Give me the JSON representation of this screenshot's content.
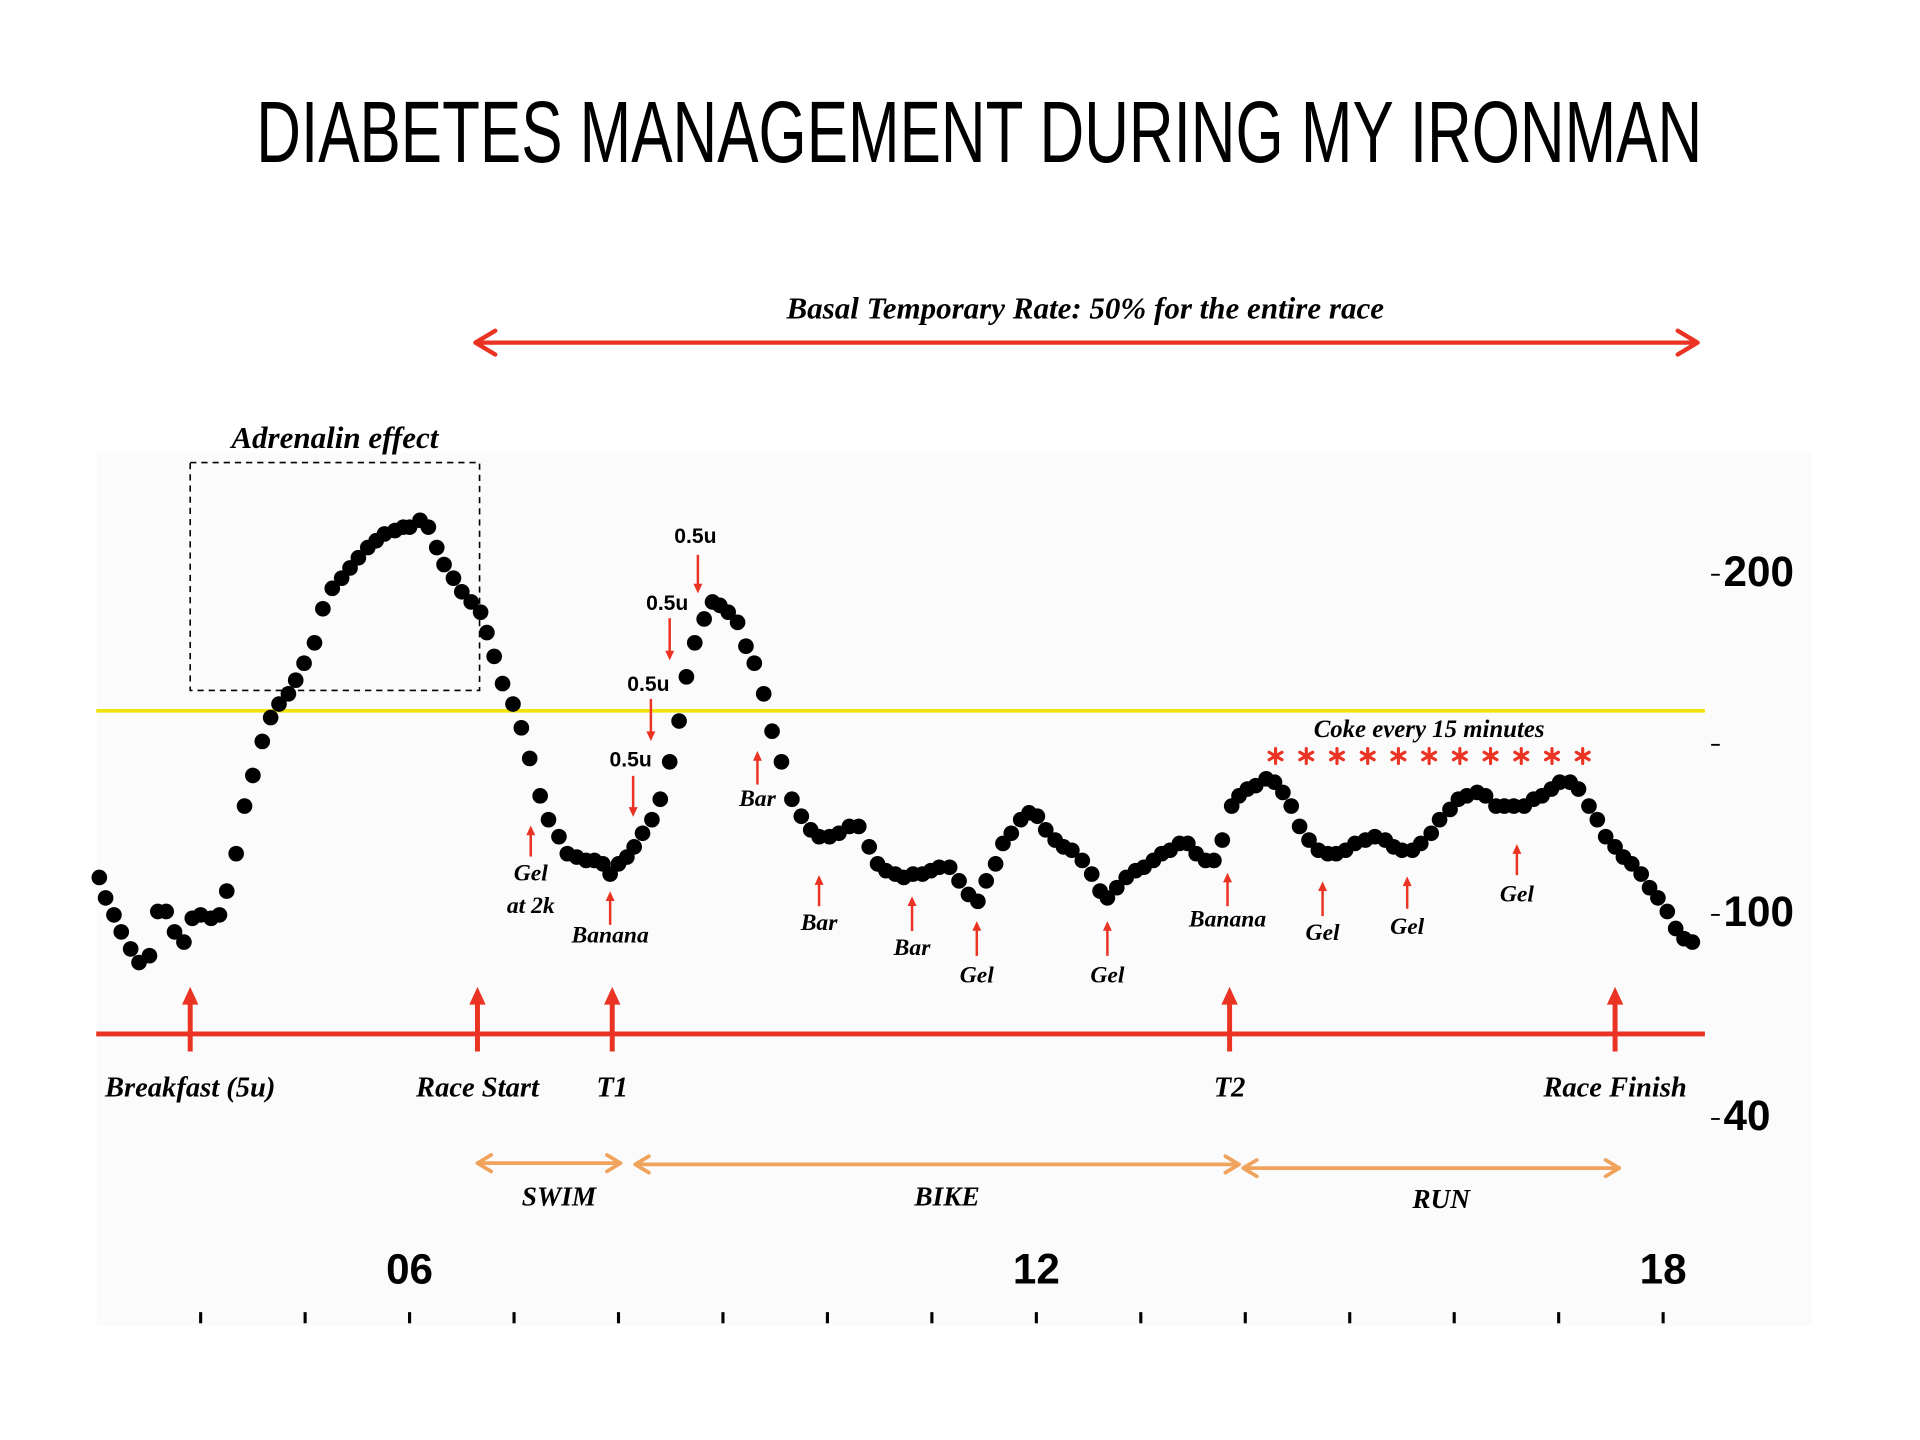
{
  "chart_data": {
    "type": "scatter",
    "title": "DIABETES MANAGEMENT DURING MY IRONMAN",
    "color": "#000000",
    "x": [
      3.03,
      3.09,
      3.17,
      3.24,
      3.33,
      3.41,
      3.51,
      3.59,
      3.67,
      3.75,
      3.84,
      3.92,
      4.0,
      4.1,
      4.18,
      4.25,
      4.34,
      4.42,
      4.5,
      4.59,
      4.67,
      4.75,
      4.84,
      4.91,
      4.99,
      5.09,
      5.17,
      5.26,
      5.35,
      5.43,
      5.51,
      5.6,
      5.68,
      5.76,
      5.86,
      5.94,
      6.0,
      6.1,
      6.18,
      6.26,
      6.33,
      6.42,
      6.5,
      6.59,
      6.68,
      6.74,
      6.81,
      6.89,
      6.99,
      7.07,
      7.15,
      7.25,
      7.33,
      7.43,
      7.51,
      7.6,
      7.69,
      7.77,
      7.85,
      7.92,
      8.0,
      8.08,
      8.15,
      8.23,
      8.32,
      8.4,
      8.49,
      8.58,
      8.65,
      8.73,
      8.82,
      8.9,
      8.97,
      9.05,
      9.14,
      9.22,
      9.3,
      9.39,
      9.47,
      9.56,
      9.66,
      9.75,
      9.84,
      9.92,
      10.02,
      10.11,
      10.21,
      10.3,
      10.4,
      10.48,
      10.56,
      10.65,
      10.73,
      10.82,
      10.91,
      10.99,
      11.07,
      11.17,
      11.26,
      11.35,
      11.44,
      11.52,
      11.61,
      11.68,
      11.76,
      11.85,
      11.93,
      12.01,
      12.09,
      12.18,
      12.26,
      12.34,
      12.44,
      12.53,
      12.61,
      12.68,
      12.77,
      12.86,
      12.95,
      13.03,
      13.12,
      13.2,
      13.28,
      13.37,
      13.45,
      13.53,
      13.62,
      13.7,
      13.78,
      13.87,
      13.94,
      14.02,
      14.1,
      14.2,
      14.28,
      14.36,
      14.44,
      14.52,
      14.61,
      14.7,
      14.79,
      14.87,
      14.96,
      15.05,
      15.15,
      15.24,
      15.34,
      15.42,
      15.5,
      15.6,
      15.68,
      15.78,
      15.86,
      15.96,
      16.04,
      16.12,
      16.22,
      16.3,
      16.4,
      16.48,
      16.57,
      16.67,
      16.76,
      16.84,
      16.93,
      17.01,
      17.11,
      17.19,
      17.29,
      17.37,
      17.45,
      17.54,
      17.62,
      17.7,
      17.79,
      17.87,
      17.95,
      18.04,
      18.12,
      18.2,
      18.28
    ],
    "values": [
      111,
      105,
      100,
      95,
      90,
      86,
      88,
      101,
      101,
      95,
      92,
      99,
      100,
      99,
      100,
      107,
      118,
      132,
      141,
      151,
      158,
      162,
      165,
      169,
      174,
      180,
      190,
      196,
      199,
      202,
      205,
      208,
      210,
      212,
      213,
      214,
      214,
      216,
      214,
      208,
      203,
      199,
      195,
      192,
      189,
      183,
      176,
      168,
      162,
      155,
      146,
      135,
      128,
      123,
      118,
      117,
      116,
      116,
      115,
      112,
      115,
      117,
      120,
      124,
      128,
      134,
      145,
      157,
      170,
      180,
      187,
      192,
      191,
      189,
      186,
      179,
      174,
      165,
      154,
      145,
      134,
      129,
      125,
      123,
      123,
      124,
      126,
      126,
      120,
      115,
      113,
      112,
      111,
      112,
      112,
      113,
      114,
      114,
      110,
      106,
      104,
      110,
      115,
      121,
      124,
      128,
      130,
      129,
      125,
      122,
      120,
      119,
      116,
      112,
      107,
      105,
      108,
      111,
      113,
      114,
      116,
      118,
      119,
      121,
      121,
      118,
      116,
      116,
      122,
      132,
      135,
      137,
      138,
      140,
      139,
      136,
      132,
      126,
      122,
      119,
      118,
      118,
      119,
      121,
      122,
      123,
      122,
      120,
      119,
      119,
      121,
      124,
      128,
      131,
      134,
      135,
      136,
      135,
      132,
      132,
      132,
      132,
      134,
      135,
      137,
      139,
      139,
      137,
      132,
      128,
      123,
      120,
      117,
      115,
      112,
      108,
      105,
      101,
      96,
      93,
      92
    ],
    "xlim": [
      3,
      18.4
    ],
    "ylim": [
      -20,
      235
    ],
    "xticks": [
      {
        "value": 6,
        "label": "06"
      },
      12,
      18
    ],
    "xminor_ticks": [
      4,
      5,
      7,
      8,
      9,
      10,
      11,
      13,
      14,
      15,
      16,
      17
    ],
    "yticks": [
      40,
      100,
      200
    ],
    "yminor_ticks": [
      150
    ],
    "reference_lines": [
      {
        "value": 160,
        "color": "#f2e20c"
      }
    ],
    "event_line": {
      "value": 65,
      "color": "#ea3323"
    },
    "basal": {
      "label": "Basal Temporary Rate: 50% for the entire race",
      "x": [
        6.63,
        18.33
      ],
      "color": "#ea3323"
    },
    "region": {
      "label": "Adrenalin effect",
      "x": [
        3.9,
        6.67
      ],
      "y": [
        166,
        233
      ]
    },
    "events": [
      {
        "label": "Breakfast (5u)",
        "x": 3.9
      },
      {
        "label": "Race Start",
        "x": 6.65
      },
      {
        "label": "T1",
        "x": 7.94
      },
      {
        "label": "T2",
        "x": 13.85
      },
      {
        "label": "Race Finish",
        "x": 17.54
      }
    ],
    "phases": [
      {
        "label": "SWIM",
        "x": [
          6.65,
          8.02
        ]
      },
      {
        "label": "BIKE",
        "x": [
          8.16,
          13.94
        ]
      },
      {
        "label": "RUN",
        "x": [
          13.98,
          17.58
        ]
      }
    ],
    "phase_color": "#f0a35c",
    "intake": [
      {
        "label": [
          "Gel",
          "at 2k"
        ],
        "x": 7.16
      },
      {
        "label": [
          "Banana"
        ],
        "x": 7.92
      },
      {
        "label": [
          "Bar"
        ],
        "x": 9.33
      },
      {
        "label": [
          "Bar"
        ],
        "x": 9.92
      },
      {
        "label": [
          "Bar"
        ],
        "x": 10.81
      },
      {
        "label": [
          "Gel"
        ],
        "x": 11.43
      },
      {
        "label": [
          "Gel"
        ],
        "x": 12.68
      },
      {
        "label": [
          "Banana"
        ],
        "x": 13.83
      },
      {
        "label": [
          "Gel"
        ],
        "x": 14.74
      },
      {
        "label": [
          "Gel"
        ],
        "x": 15.55
      },
      {
        "label": [
          "Gel"
        ],
        "x": 16.6
      }
    ],
    "insulin": [
      {
        "label": "0.5u",
        "x": 8.14
      },
      {
        "label": "0.5u",
        "x": 8.31
      },
      {
        "label": "0.5u",
        "x": 8.49
      },
      {
        "label": "0.5u",
        "x": 8.76
      }
    ],
    "coke": {
      "label": "Coke every 15 minutes",
      "x": [
        14.29,
        17.23
      ]
    },
    "annotation_color": "#ea3323"
  }
}
